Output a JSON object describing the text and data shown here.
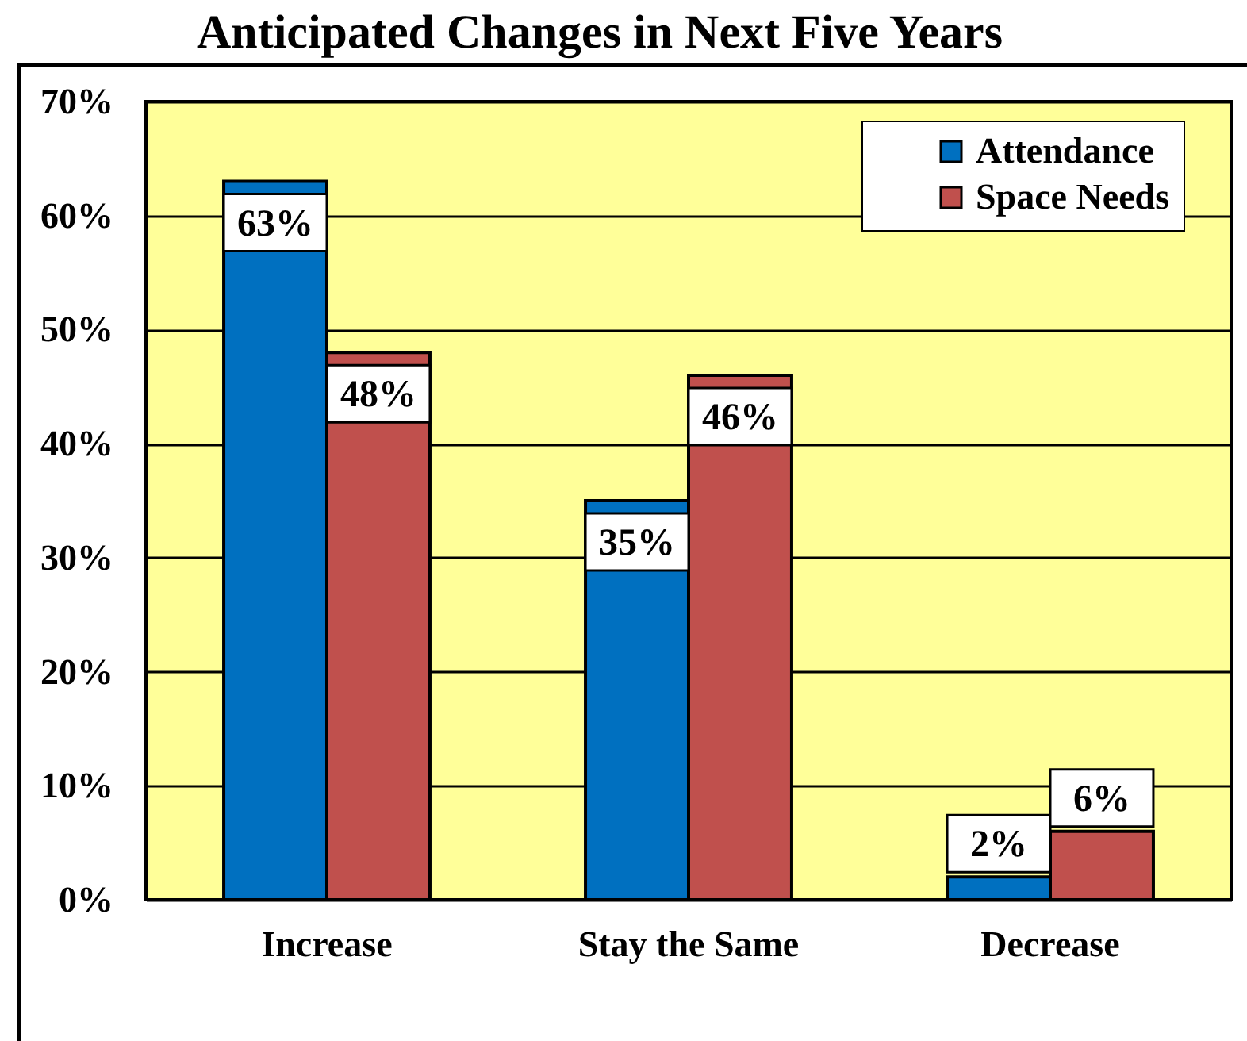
{
  "chart_data": {
    "type": "bar",
    "title": "Anticipated Changes in Next Five Years",
    "categories": [
      "Increase",
      "Stay the Same",
      "Decrease"
    ],
    "series": [
      {
        "name": "Attendance",
        "color": "#0070c0",
        "values": [
          63,
          35,
          2
        ],
        "value_labels": [
          "63%",
          "35%",
          "2%"
        ]
      },
      {
        "name": "Space Needs",
        "color": "#c0504d",
        "values": [
          48,
          46,
          6
        ],
        "value_labels": [
          "48%",
          "46%",
          "6%"
        ]
      }
    ],
    "ylim": [
      0,
      70
    ],
    "yticks": [
      {
        "value": 0,
        "label": "0%"
      },
      {
        "value": 10,
        "label": "10%"
      },
      {
        "value": 20,
        "label": "20%"
      },
      {
        "value": 30,
        "label": "30%"
      },
      {
        "value": 40,
        "label": "40%"
      },
      {
        "value": 50,
        "label": "50%"
      },
      {
        "value": 60,
        "label": "60%"
      },
      {
        "value": 70,
        "label": "70%"
      }
    ],
    "grid": "y",
    "legend": "top right"
  }
}
